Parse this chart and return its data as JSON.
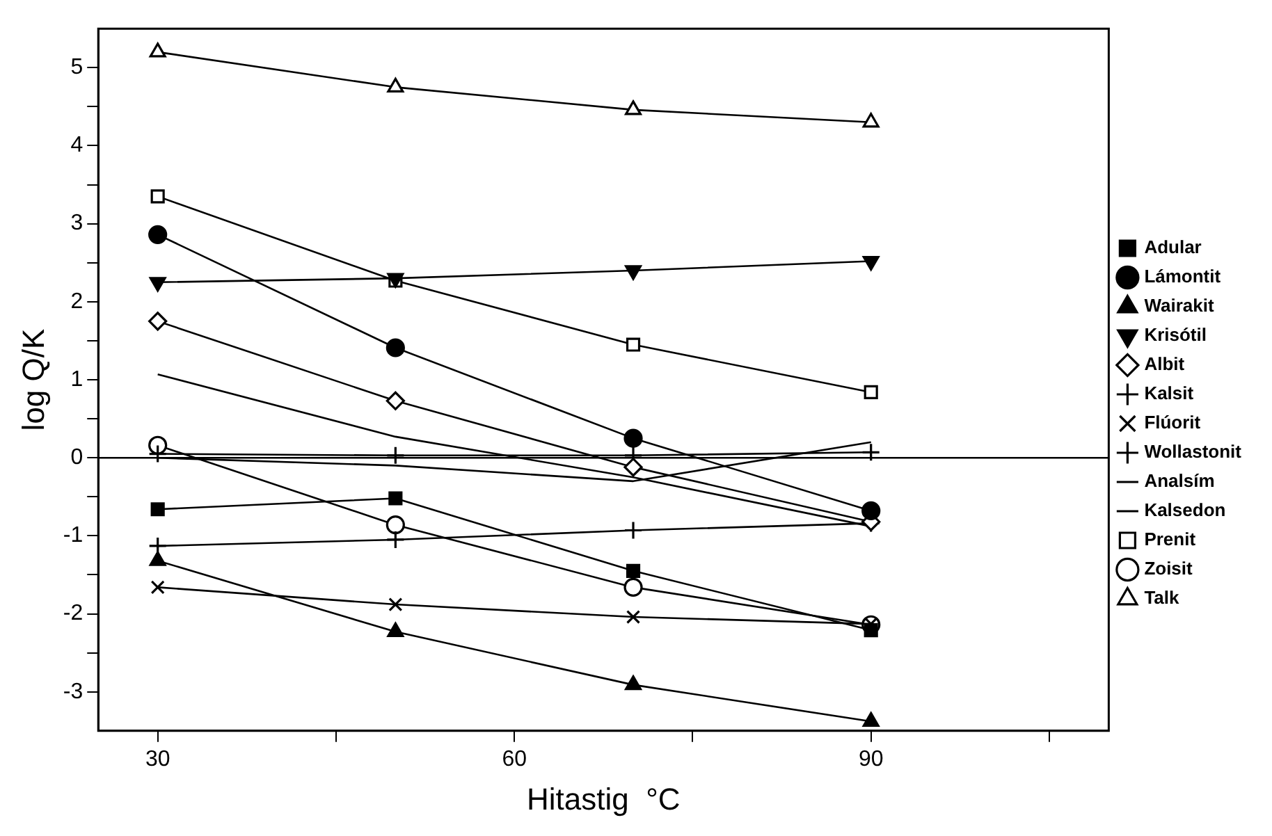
{
  "chart_data": {
    "type": "line",
    "xlabel": "Hitastig  °C",
    "ylabel": "log Q/K",
    "x": [
      30,
      50,
      70,
      90
    ],
    "xlim": [
      25,
      110
    ],
    "xticks": [
      30,
      {
        "value": 45,
        "label": null
      },
      60,
      {
        "value": 75,
        "label": null
      },
      90,
      {
        "value": 105,
        "label": null
      }
    ],
    "ylim": [
      -3.5,
      5.5
    ],
    "yticks": [
      -3,
      {
        "value": -2.5,
        "label": null
      },
      -2,
      {
        "value": -1.5,
        "label": null
      },
      -1,
      {
        "value": -0.5,
        "label": null
      },
      0,
      {
        "value": 0.5,
        "label": null
      },
      1,
      {
        "value": 1.5,
        "label": null
      },
      2,
      {
        "value": 2.5,
        "label": null
      },
      3,
      {
        "value": 3.5,
        "label": null
      },
      4,
      {
        "value": 4.5,
        "label": null
      },
      5
    ],
    "grid": false,
    "legend": "right",
    "line_style": "solid",
    "ref_lines": [
      {
        "axis": "y",
        "value": 0,
        "color": "#000000"
      }
    ],
    "series": [
      {
        "name": "Adular",
        "color": "#000000",
        "marker": "square",
        "values": [
          -0.66,
          -0.52,
          -1.45,
          -2.21
        ]
      },
      {
        "name": "Lámontit",
        "color": "#000000",
        "marker": "circle",
        "values": [
          2.86,
          1.41,
          0.25,
          -0.68
        ]
      },
      {
        "name": "Wairakit",
        "color": "#000000",
        "marker": "triangle",
        "values": [
          -1.32,
          -2.23,
          -2.91,
          -3.38
        ]
      },
      {
        "name": "Krisótil",
        "color": "#000000",
        "marker": "triangle-down",
        "values": [
          2.25,
          2.3,
          2.4,
          2.52
        ]
      },
      {
        "name": "Albit",
        "color": "#000000",
        "marker": "diamond-open",
        "values": [
          1.75,
          0.73,
          -0.12,
          -0.82
        ]
      },
      {
        "name": "Kalsit",
        "color": "#000000",
        "marker": "cross",
        "values": [
          0.05,
          0.03,
          0.03,
          0.07
        ]
      },
      {
        "name": "Flúorit",
        "color": "#000000",
        "marker": "x",
        "values": [
          -1.66,
          -1.88,
          -2.04,
          -2.13
        ]
      },
      {
        "name": "Wollastonit",
        "color": "#000000",
        "marker": "cross",
        "values": [
          -1.13,
          -1.05,
          -0.93,
          -0.84
        ]
      },
      {
        "name": "Analsím",
        "color": "#000000",
        "values": [
          1.07,
          0.27,
          -0.25,
          -0.88
        ]
      },
      {
        "name": "Kalsedon",
        "color": "#000000",
        "values": [
          0,
          -0.1,
          -0.3,
          0.2
        ]
      },
      {
        "name": "Prenit",
        "color": "#000000",
        "marker": "square-open",
        "values": [
          3.35,
          2.27,
          1.45,
          0.84
        ]
      },
      {
        "name": "Zoisit",
        "color": "#000000",
        "marker": "circle-open",
        "values": [
          0.16,
          -0.86,
          -1.66,
          -2.14
        ]
      },
      {
        "name": "Talk",
        "color": "#000000",
        "marker": "triangle-open",
        "values": [
          5.2,
          4.75,
          4.46,
          4.3
        ]
      }
    ]
  }
}
